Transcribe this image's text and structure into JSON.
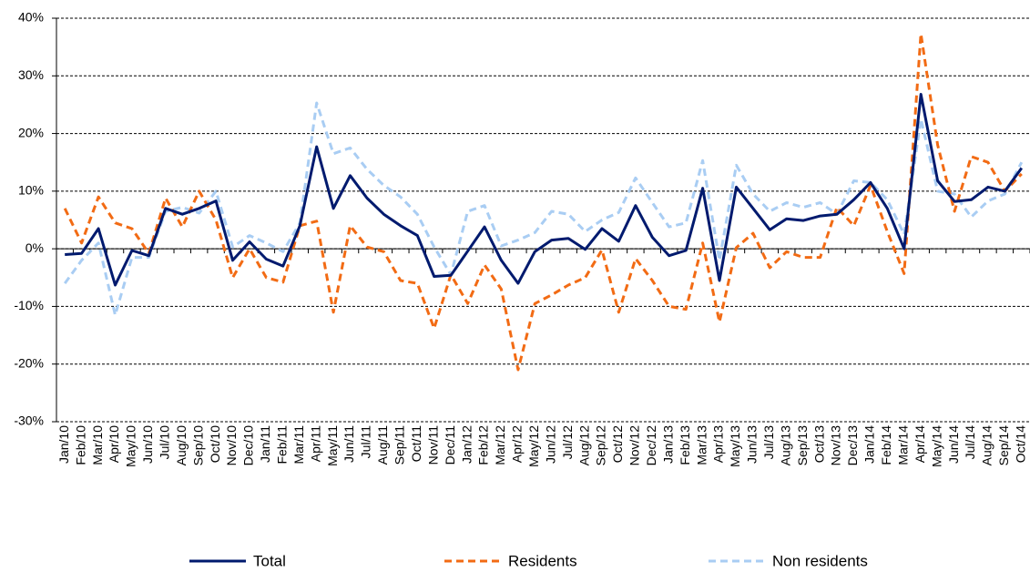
{
  "chart_data": {
    "type": "line",
    "categories": [
      "Jan/10",
      "Feb/10",
      "Mar/10",
      "Apr/10",
      "May/10",
      "Jun/10",
      "Jul/10",
      "Aug/10",
      "Sep/10",
      "Oct/10",
      "Nov/10",
      "Dec/10",
      "Jan/11",
      "Feb/11",
      "Mar/11",
      "Apr/11",
      "May/11",
      "Jun/11",
      "Jul/11",
      "Aug/11",
      "Sep/11",
      "Oct/11",
      "Nov/11",
      "Dec/11",
      "Jan/12",
      "Feb/12",
      "Mar/12",
      "Apr/12",
      "May/12",
      "Jun/12",
      "Jul/12",
      "Aug/12",
      "Sep/12",
      "Oct/12",
      "Nov/12",
      "Dec/12",
      "Jan/13",
      "Feb/13",
      "Mar/13",
      "Apr/13",
      "May/13",
      "Jun/13",
      "Jul/13",
      "Aug/13",
      "Sep/13",
      "Oct/13",
      "Nov/13",
      "Dec/13",
      "Jan/14",
      "Feb/14",
      "Mar/14",
      "Apr/14",
      "May/14",
      "Jun/14",
      "Jul/14",
      "Aug/14",
      "Sep/14",
      "Oct/14"
    ],
    "series": [
      {
        "name": "Total",
        "color": "#001a6e",
        "dash": false,
        "values": [
          -1.0,
          -0.8,
          3.5,
          -6.3,
          -0.3,
          -1.2,
          7.0,
          6.0,
          7.0,
          8.3,
          -2.0,
          1.2,
          -1.8,
          -3.0,
          4.0,
          17.7,
          7.0,
          12.7,
          8.8,
          6.0,
          4.0,
          2.3,
          -4.8,
          -4.6,
          -0.4,
          3.8,
          -2.0,
          -6.0,
          -0.5,
          1.5,
          1.8,
          -0.1,
          3.5,
          1.3,
          7.5,
          2.0,
          -1.2,
          -0.3,
          10.5,
          -5.5,
          10.7,
          7.0,
          3.3,
          5.2,
          4.9,
          5.7,
          6.0,
          8.5,
          11.5,
          7.0,
          0.0,
          26.8,
          11.8,
          8.2,
          8.5,
          10.7,
          10.0,
          14.0
        ]
      },
      {
        "name": "Residents",
        "color": "#f26b14",
        "dash": true,
        "values": [
          7.0,
          1.0,
          9.0,
          4.5,
          3.5,
          -0.8,
          8.8,
          3.8,
          10.0,
          5.0,
          -5.0,
          0.0,
          -5.0,
          -5.8,
          4.0,
          4.8,
          -11.0,
          4.0,
          0.3,
          -0.5,
          -5.5,
          -6.0,
          -13.8,
          -4.5,
          -9.5,
          -2.8,
          -7.0,
          -21.0,
          -9.5,
          -8.0,
          -6.3,
          -5.0,
          -0.2,
          -11.0,
          -1.7,
          -5.5,
          -10.0,
          -10.5,
          1.0,
          -12.7,
          0.2,
          2.7,
          -3.3,
          -0.5,
          -1.5,
          -1.5,
          7.2,
          4.0,
          11.0,
          3.0,
          -4.3,
          37.3,
          18.0,
          6.5,
          16.0,
          15.0,
          10.0,
          13.0
        ]
      },
      {
        "name": "Non residents",
        "color": "#a9cdf3",
        "dash": true,
        "values": [
          -6.0,
          -2.0,
          1.0,
          -11.5,
          -1.5,
          -1.5,
          6.5,
          7.2,
          6.2,
          10.0,
          0.3,
          2.3,
          1.0,
          -0.5,
          4.5,
          25.3,
          16.5,
          17.5,
          13.8,
          11.0,
          9.0,
          6.0,
          0.3,
          -4.5,
          6.5,
          7.5,
          0.5,
          1.5,
          2.8,
          6.5,
          6.0,
          3.0,
          5.0,
          6.3,
          12.3,
          8.0,
          3.8,
          4.5,
          15.3,
          -2.0,
          14.5,
          9.5,
          6.5,
          8.0,
          7.2,
          8.0,
          6.0,
          11.8,
          11.5,
          8.5,
          2.5,
          22.5,
          10.0,
          9.5,
          5.5,
          8.3,
          9.5,
          15.0
        ]
      }
    ],
    "ylim": [
      -30,
      40
    ],
    "yticks": [
      {
        "value": -30,
        "label": "-30%"
      },
      {
        "value": -20,
        "label": "-20%"
      },
      {
        "value": -10,
        "label": "-10%"
      },
      {
        "value": 0,
        "label": "0%"
      },
      {
        "value": 10,
        "label": "10%"
      },
      {
        "value": 20,
        "label": "20%"
      },
      {
        "value": 30,
        "label": "30%"
      },
      {
        "value": 40,
        "label": "40%"
      }
    ],
    "grid": true
  }
}
